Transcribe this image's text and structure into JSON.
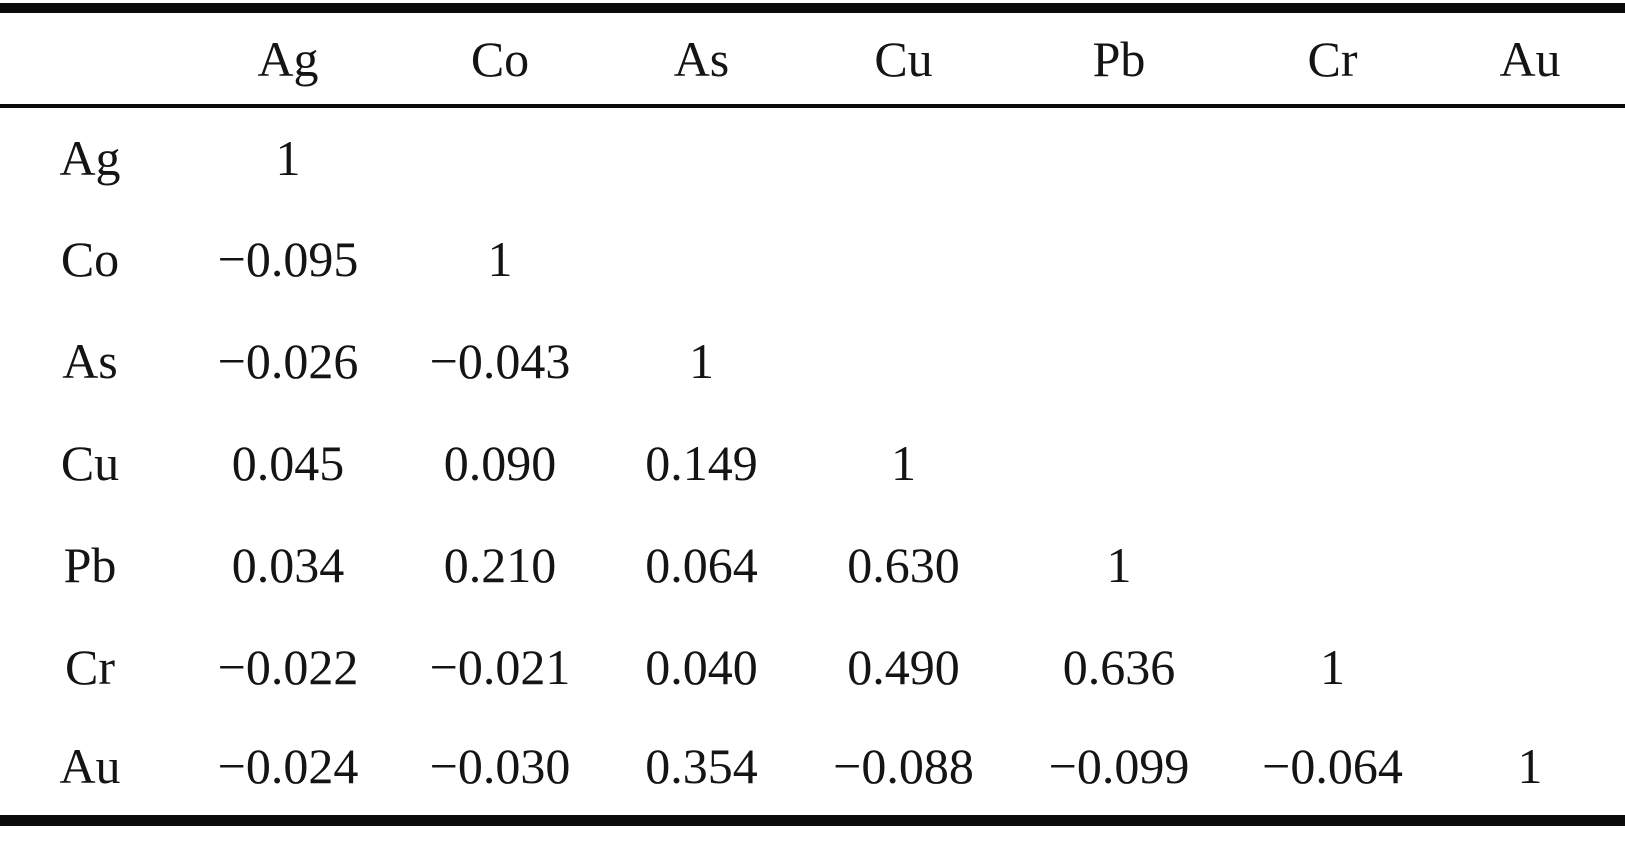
{
  "table": {
    "title": "correlation-matrix",
    "columns": [
      "",
      "Ag",
      "Co",
      "As",
      "Cu",
      "Pb",
      "Cr",
      "Au"
    ],
    "rows": [
      {
        "label": "Ag",
        "values": [
          "1",
          "",
          "",
          "",
          "",
          "",
          ""
        ]
      },
      {
        "label": "Co",
        "values": [
          "−0.095",
          "1",
          "",
          "",
          "",
          "",
          ""
        ]
      },
      {
        "label": "As",
        "values": [
          "−0.026",
          "−0.043",
          "1",
          "",
          "",
          "",
          ""
        ]
      },
      {
        "label": "Cu",
        "values": [
          "0.045",
          "0.090",
          "0.149",
          "1",
          "",
          "",
          ""
        ]
      },
      {
        "label": "Pb",
        "values": [
          "0.034",
          "0.210",
          "0.064",
          "0.630",
          "1",
          "",
          ""
        ]
      },
      {
        "label": "Cr",
        "values": [
          "−0.022",
          "−0.021",
          "0.040",
          "0.490",
          "0.636",
          "1",
          ""
        ]
      },
      {
        "label": "Au",
        "values": [
          "−0.024",
          "−0.030",
          "0.354",
          "−0.088",
          "−0.099",
          "−0.064",
          "1"
        ]
      }
    ]
  },
  "colors": {
    "text": "#141414",
    "rule": "#0a0a0a",
    "background": "#ffffff"
  }
}
